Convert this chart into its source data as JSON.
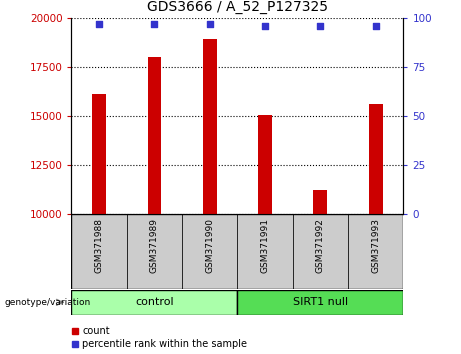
{
  "title": "GDS3666 / A_52_P127325",
  "samples": [
    "GSM371988",
    "GSM371989",
    "GSM371990",
    "GSM371991",
    "GSM371992",
    "GSM371993"
  ],
  "counts": [
    16100,
    18000,
    18900,
    15050,
    11250,
    15600
  ],
  "percentile_ranks": [
    97,
    97,
    97,
    96,
    96,
    96
  ],
  "ylim_left": [
    10000,
    20000
  ],
  "ylim_right": [
    0,
    100
  ],
  "yticks_left": [
    10000,
    12500,
    15000,
    17500,
    20000
  ],
  "yticks_right": [
    0,
    25,
    50,
    75,
    100
  ],
  "bar_color": "#cc0000",
  "dot_color": "#3333cc",
  "groups": [
    {
      "label": "control",
      "indices": [
        0,
        1,
        2
      ],
      "color": "#aaffaa"
    },
    {
      "label": "SIRT1 null",
      "indices": [
        3,
        4,
        5
      ],
      "color": "#55dd55"
    }
  ],
  "group_label_prefix": "genotype/variation",
  "legend_count_label": "count",
  "legend_pct_label": "percentile rank within the sample",
  "bg_color": "#ffffff",
  "sample_bg_color": "#cccccc",
  "title_fontsize": 10,
  "tick_fontsize": 7.5,
  "bar_width": 0.25
}
